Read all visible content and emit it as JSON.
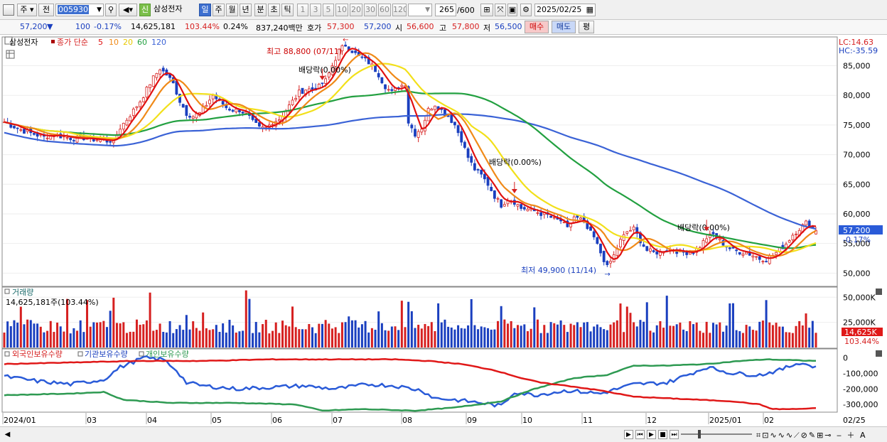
{
  "toolbar": {
    "market_label": "주",
    "market_label2": "전",
    "code_value": "005930",
    "new_badge": "신",
    "stock_name": "삼성전자",
    "periods": [
      "일",
      "주",
      "월",
      "년",
      "분",
      "초",
      "틱"
    ],
    "period_selected": "일",
    "intervals": [
      "1",
      "3",
      "5",
      "10",
      "20",
      "30",
      "60",
      "120"
    ],
    "count_value": "265",
    "count_max": "/600",
    "date_value": "2025/02/25"
  },
  "quote": {
    "price": "57,200",
    "down_arrow": "▼",
    "change": "100",
    "change_pct": "-0.17%",
    "volume": "14,625,181",
    "vol_ratio": "103.44%",
    "turnover": "0.24%",
    "amount": "837,240백만",
    "ask_label": "호가",
    "ask1": "57,300",
    "bid1": "57,200",
    "open_label": "시",
    "open": "56,600",
    "high_label": "고",
    "high": "57,800",
    "low_label": "저",
    "low": "56,500",
    "buy_button": "매수",
    "sell_button": "매도",
    "eval_button": "평"
  },
  "colors": {
    "up": "#d62020",
    "down": "#1a3fbf",
    "ma5": "#e01010",
    "ma10": "#f08a18",
    "ma20": "#f2e01a",
    "ma60": "#22a040",
    "ma120": "#3a62d6",
    "foreign": "#2a5bd8",
    "institution": "#2e9a52",
    "individual": "#e01818"
  },
  "main_panel": {
    "legend_name": "삼성전자",
    "legend_close": "종가 단순",
    "ma_labels": [
      "5",
      "10",
      "20",
      "60",
      "120"
    ],
    "lc": "LC:14.63",
    "hc": "HC:-35.59",
    "price_tag": "57,200",
    "pct_tag": "-0.17%",
    "high_note": "최고 88,800 (07/11)",
    "low_note": "최저 49,900 (11/14)",
    "dividend_notes": [
      "배당락(0.00%)",
      "배당락(0.00%)",
      "배당락(0.00%)"
    ]
  },
  "volume_panel": {
    "title": "거래량",
    "summary": "14,625,181주(103.44%)",
    "tag_value": "14,625K",
    "tag_pct": "103.44%"
  },
  "holder_panel": {
    "legend": [
      "외국인보유수량",
      "기관보유수량",
      "개인보유수량"
    ]
  },
  "chart_data": {
    "type": "candlestick",
    "title": "",
    "x_ticks": [
      "2024/01",
      "03",
      "04",
      "05",
      "06",
      "07",
      "08",
      "09",
      "10",
      "11",
      "12",
      "2025/01",
      "02",
      "02/25"
    ],
    "price_axis": {
      "ticks": [
        50000,
        55000,
        60000,
        65000,
        70000,
        75000,
        80000,
        85000
      ],
      "tick_labels": [
        "50,000",
        "55,000",
        "60,000",
        "65,000",
        "70,000",
        "75,000",
        "80,000",
        "85,000"
      ],
      "ylim": [
        48000,
        89500
      ]
    },
    "price_path": [
      [
        0,
        75500
      ],
      [
        3,
        74700
      ],
      [
        6,
        74000
      ],
      [
        9,
        73500
      ],
      [
        12,
        73000
      ],
      [
        15,
        73400
      ],
      [
        18,
        73000
      ],
      [
        21,
        72700
      ],
      [
        24,
        72800
      ],
      [
        27,
        72600
      ],
      [
        29,
        72500
      ],
      [
        31,
        72300
      ],
      [
        33,
        72400
      ],
      [
        35,
        74500
      ],
      [
        37,
        76000
      ],
      [
        39,
        77500
      ],
      [
        41,
        79000
      ],
      [
        43,
        81000
      ],
      [
        45,
        83000
      ],
      [
        47,
        84500
      ],
      [
        49,
        83500
      ],
      [
        51,
        82000
      ],
      [
        53,
        79000
      ],
      [
        55,
        77000
      ],
      [
        57,
        76500
      ],
      [
        59,
        77000
      ],
      [
        61,
        78500
      ],
      [
        63,
        80000
      ],
      [
        65,
        79000
      ],
      [
        67,
        78000
      ],
      [
        69,
        77500
      ],
      [
        71,
        77500
      ],
      [
        73,
        77000
      ],
      [
        75,
        75500
      ],
      [
        77,
        74500
      ],
      [
        79,
        74500
      ],
      [
        81,
        75500
      ],
      [
        83,
        76000
      ],
      [
        85,
        77500
      ],
      [
        87,
        79000
      ],
      [
        89,
        80500
      ],
      [
        91,
        81000
      ],
      [
        93,
        81000
      ],
      [
        95,
        81500
      ],
      [
        97,
        82500
      ],
      [
        99,
        85000
      ],
      [
        101,
        87500
      ],
      [
        103,
        88500
      ],
      [
        105,
        87500
      ],
      [
        107,
        86500
      ],
      [
        109,
        86000
      ],
      [
        111,
        85000
      ],
      [
        113,
        83500
      ],
      [
        115,
        81500
      ],
      [
        117,
        80500
      ],
      [
        119,
        81500
      ],
      [
        121,
        82000
      ],
      [
        122,
        75500
      ],
      [
        124,
        73500
      ],
      [
        126,
        74500
      ],
      [
        128,
        77500
      ],
      [
        130,
        78500
      ],
      [
        132,
        77500
      ],
      [
        134,
        76500
      ],
      [
        136,
        75000
      ],
      [
        138,
        72500
      ],
      [
        140,
        69500
      ],
      [
        142,
        67500
      ],
      [
        144,
        66500
      ],
      [
        146,
        65000
      ],
      [
        148,
        63000
      ],
      [
        150,
        61500
      ],
      [
        152,
        62500
      ],
      [
        154,
        62000
      ],
      [
        156,
        61000
      ],
      [
        158,
        60800
      ],
      [
        160,
        60500
      ],
      [
        162,
        60000
      ],
      [
        164,
        59800
      ],
      [
        166,
        59000
      ],
      [
        168,
        58800
      ],
      [
        170,
        57500
      ],
      [
        172,
        59500
      ],
      [
        174,
        59000
      ],
      [
        176,
        57500
      ],
      [
        178,
        56000
      ],
      [
        180,
        53500
      ],
      [
        182,
        51000
      ],
      [
        184,
        53000
      ],
      [
        186,
        55500
      ],
      [
        188,
        57000
      ],
      [
        190,
        57500
      ],
      [
        192,
        55500
      ],
      [
        194,
        53800
      ],
      [
        196,
        53500
      ],
      [
        198,
        53500
      ],
      [
        200,
        54000
      ],
      [
        202,
        54000
      ],
      [
        204,
        53500
      ],
      [
        206,
        53500
      ],
      [
        208,
        53600
      ],
      [
        210,
        54500
      ],
      [
        212,
        56000
      ],
      [
        214,
        56500
      ],
      [
        216,
        55500
      ],
      [
        218,
        54500
      ],
      [
        220,
        53800
      ],
      [
        222,
        53600
      ],
      [
        224,
        53500
      ],
      [
        226,
        53000
      ],
      [
        228,
        52500
      ],
      [
        230,
        52300
      ],
      [
        232,
        53000
      ],
      [
        234,
        54000
      ],
      [
        236,
        55000
      ],
      [
        238,
        56500
      ],
      [
        240,
        57500
      ],
      [
        242,
        58500
      ],
      [
        244,
        57700
      ],
      [
        245,
        57200
      ]
    ],
    "highest": {
      "value": 88800,
      "date": "07/11"
    },
    "lowest": {
      "value": 49900,
      "date": "11/14"
    },
    "moving_averages": [
      "MA5",
      "MA10",
      "MA20",
      "MA60",
      "MA120"
    ],
    "volume_axis": {
      "ticks": [
        25000,
        50000
      ],
      "tick_labels": [
        "25,000K",
        "50,000K"
      ]
    },
    "last_volume_k": 14625,
    "holder_axis": {
      "ticks": [
        0,
        -100000,
        -200000,
        -300000
      ],
      "tick_labels": [
        "0",
        "-100,000",
        "-200,000",
        "-300,000"
      ]
    },
    "holder_series": [
      {
        "name": "외국인보유수량",
        "values": [
          [
            0,
            -120000
          ],
          [
            10,
            -150000
          ],
          [
            20,
            -170000
          ],
          [
            30,
            -140000
          ],
          [
            35,
            -60000
          ],
          [
            42,
            0
          ],
          [
            48,
            -10000
          ],
          [
            52,
            -80000
          ],
          [
            55,
            -160000
          ],
          [
            60,
            -180000
          ],
          [
            70,
            -200000
          ],
          [
            80,
            -190000
          ],
          [
            90,
            -180000
          ],
          [
            100,
            -200000
          ],
          [
            110,
            -170000
          ],
          [
            118,
            -180000
          ],
          [
            126,
            -210000
          ],
          [
            130,
            -260000
          ],
          [
            136,
            -270000
          ],
          [
            144,
            -290000
          ],
          [
            150,
            -310000
          ],
          [
            154,
            -220000
          ],
          [
            160,
            -240000
          ],
          [
            170,
            -210000
          ],
          [
            180,
            -230000
          ],
          [
            190,
            -170000
          ],
          [
            200,
            -160000
          ],
          [
            205,
            -120000
          ],
          [
            212,
            -60000
          ],
          [
            220,
            -100000
          ],
          [
            228,
            -110000
          ],
          [
            234,
            -80000
          ],
          [
            240,
            -30000
          ],
          [
            245,
            -60000
          ]
        ]
      },
      {
        "name": "기관보유수량",
        "values": [
          [
            0,
            -240000
          ],
          [
            20,
            -230000
          ],
          [
            30,
            -220000
          ],
          [
            36,
            -270000
          ],
          [
            50,
            -290000
          ],
          [
            70,
            -290000
          ],
          [
            88,
            -300000
          ],
          [
            96,
            -340000
          ],
          [
            108,
            -330000
          ],
          [
            124,
            -340000
          ],
          [
            136,
            -320000
          ],
          [
            150,
            -280000
          ],
          [
            160,
            -200000
          ],
          [
            172,
            -130000
          ],
          [
            182,
            -110000
          ],
          [
            190,
            -50000
          ],
          [
            200,
            -50000
          ],
          [
            212,
            -40000
          ],
          [
            222,
            -20000
          ],
          [
            230,
            -10000
          ],
          [
            238,
            -15000
          ],
          [
            245,
            -20000
          ]
        ]
      },
      {
        "name": "개인보유수량",
        "values": [
          [
            0,
            -40000
          ],
          [
            20,
            -30000
          ],
          [
            40,
            -20000
          ],
          [
            60,
            -20000
          ],
          [
            80,
            -10000
          ],
          [
            100,
            -10000
          ],
          [
            118,
            -10000
          ],
          [
            128,
            -20000
          ],
          [
            138,
            -40000
          ],
          [
            148,
            -80000
          ],
          [
            156,
            -130000
          ],
          [
            162,
            -160000
          ],
          [
            170,
            -180000
          ],
          [
            180,
            -210000
          ],
          [
            190,
            -250000
          ],
          [
            200,
            -260000
          ],
          [
            210,
            -270000
          ],
          [
            220,
            -280000
          ],
          [
            228,
            -300000
          ],
          [
            232,
            -330000
          ],
          [
            238,
            -330000
          ],
          [
            245,
            -325000
          ]
        ]
      }
    ]
  }
}
